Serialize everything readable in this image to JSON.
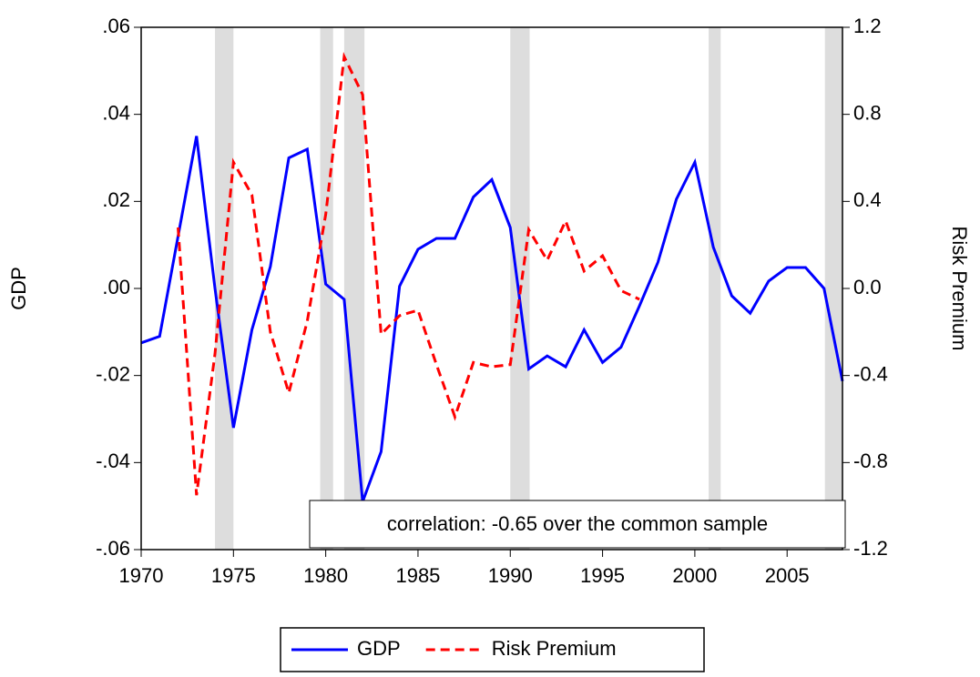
{
  "chart_data": {
    "type": "line",
    "annotation": "correlation: -0.65 over the common sample",
    "y_label": "GDP",
    "y2_label": "Risk Premium",
    "x": [
      1970,
      1971,
      1972,
      1973,
      1974,
      1975,
      1976,
      1977,
      1978,
      1979,
      1980,
      1981,
      1982,
      1983,
      1984,
      1985,
      1986,
      1987,
      1988,
      1989,
      1990,
      1991,
      1992,
      1993,
      1994,
      1995,
      1996,
      1997,
      1998,
      1999,
      2000,
      2001,
      2002,
      2003,
      2004,
      2005,
      2006,
      2007,
      2008
    ],
    "series": [
      {
        "name": "GDP",
        "color": "#0000ff",
        "line_style": "solid",
        "axis": "y",
        "values": [
          -0.0125,
          -0.011,
          0.012,
          0.035,
          0.0,
          -0.032,
          -0.0095,
          0.005,
          0.03,
          0.032,
          0.001,
          -0.0025,
          -0.049,
          -0.0375,
          0.0005,
          0.009,
          0.0115,
          0.0115,
          0.021,
          0.025,
          0.014,
          -0.0185,
          -0.0155,
          -0.018,
          -0.0095,
          -0.017,
          -0.0135,
          -0.004,
          0.006,
          0.0205,
          0.029,
          0.0095,
          -0.0017,
          -0.0057,
          0.0017,
          0.0048,
          0.0048,
          0.0,
          -0.0213
        ]
      },
      {
        "name": "Risk Premium",
        "color": "#ff0000",
        "line_style": "dashed",
        "axis": "y2",
        "values": [
          null,
          null,
          0.28,
          -0.95,
          -0.3,
          0.58,
          0.43,
          -0.2,
          -0.48,
          -0.15,
          0.34,
          1.065,
          0.89,
          -0.21,
          -0.125,
          -0.1,
          -0.35,
          -0.59,
          -0.34,
          -0.36,
          -0.35,
          0.27,
          0.13,
          0.31,
          0.08,
          0.15,
          -0.01,
          -0.05,
          null,
          null,
          null,
          null,
          null,
          null,
          null,
          null,
          null,
          null,
          null
        ]
      }
    ],
    "xlim": [
      1970,
      2008
    ],
    "xticks": [
      1970,
      1975,
      1980,
      1985,
      1990,
      1995,
      2000,
      2005
    ],
    "ylim": [
      -0.06,
      0.06
    ],
    "yticks": [
      {
        "value": 0.06,
        "label": ".06"
      },
      {
        "value": 0.04,
        "label": ".04"
      },
      {
        "value": 0.02,
        "label": ".02"
      },
      {
        "value": 0,
        "label": ".00"
      },
      {
        "value": -0.02,
        "label": "-.02"
      },
      {
        "value": -0.04,
        "label": "-.04"
      },
      {
        "value": -0.06,
        "label": "-.06"
      }
    ],
    "y2lim": [
      -1.2,
      1.2
    ],
    "y2ticks": [
      1.2,
      0.8,
      0.4,
      {
        "value": 0,
        "label": "0.0"
      },
      -0.4,
      -0.8,
      -1.2
    ],
    "shading": [
      [
        1974,
        1975
      ],
      [
        1979.7,
        1980.4
      ],
      [
        1981,
        1982.1
      ],
      [
        1990,
        1991.05
      ],
      [
        2000.75,
        2001.4
      ],
      [
        2007.05,
        2008
      ]
    ],
    "shading_color": "#dddddd",
    "legend": "bottom"
  }
}
